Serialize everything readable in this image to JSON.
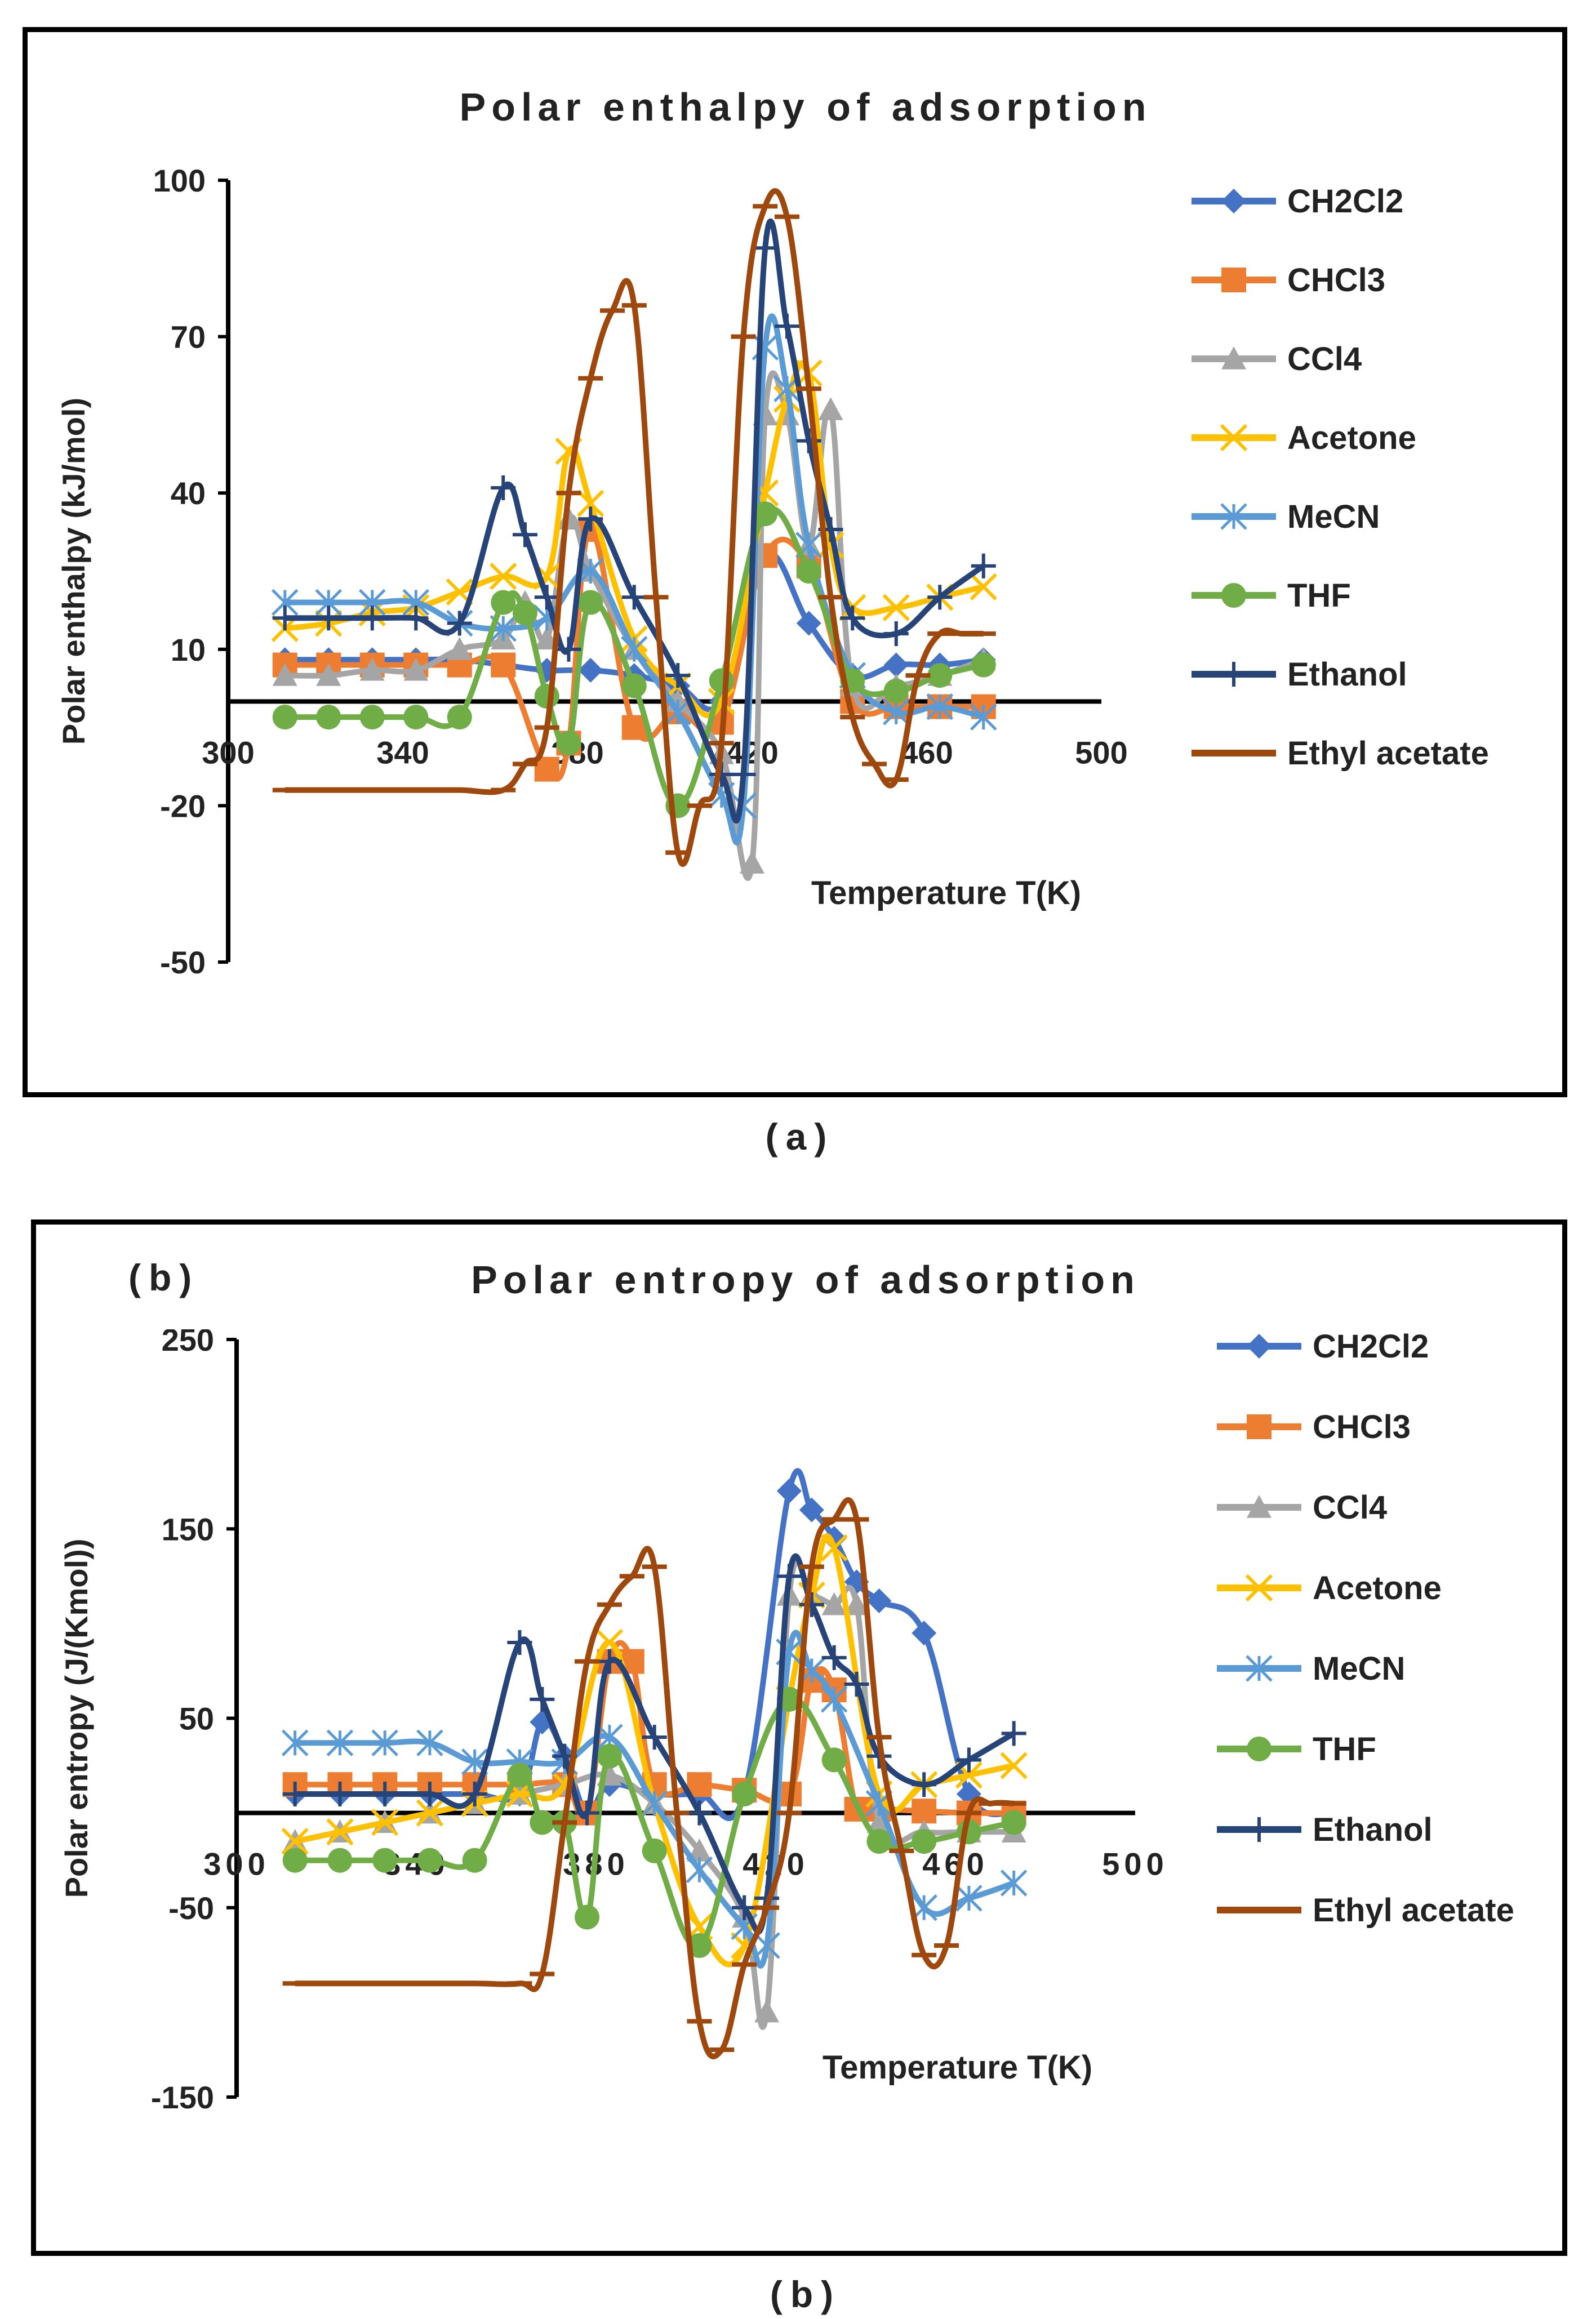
{
  "figure": {
    "caption_a": "(a)",
    "caption_b": "(b)",
    "panel_b_tag": "(b)"
  },
  "series_styles": [
    {
      "name": "CH2Cl2",
      "color": "#4472C4",
      "marker": "diamond"
    },
    {
      "name": "CHCl3",
      "color": "#ED7D31",
      "marker": "square"
    },
    {
      "name": "CCl4",
      "color": "#A5A5A5",
      "marker": "triangle"
    },
    {
      "name": "Acetone",
      "color": "#FFC000",
      "marker": "x"
    },
    {
      "name": "MeCN",
      "color": "#5B9BD5",
      "marker": "star"
    },
    {
      "name": "THF",
      "color": "#70AD47",
      "marker": "circle"
    },
    {
      "name": "Ethanol",
      "color": "#264478",
      "marker": "plus"
    },
    {
      "name": "Ethyl acetate",
      "color": "#9E480E",
      "marker": "dash"
    }
  ],
  "chart_data": [
    {
      "type": "line",
      "title": "Polar enthalpy of adsorption",
      "xlabel": "Temperature T(K)",
      "ylabel": "Polar enthalpy (kJ/mol)",
      "xlim": [
        300,
        500
      ],
      "ylim": [
        -50,
        100
      ],
      "x_ticks": [
        "300",
        "340",
        "380",
        "420",
        "460",
        "500"
      ],
      "y_ticks": [
        "100",
        "70",
        "40",
        "10",
        "-20",
        "-50"
      ],
      "legend_position": "right",
      "grid": false,
      "series": [
        {
          "name": "CH2Cl2",
          "x": [
            313,
            323,
            333,
            343,
            353,
            363,
            373,
            383,
            393,
            403,
            413,
            423,
            433,
            443,
            453,
            463,
            473
          ],
          "y": [
            8,
            8,
            8,
            8,
            8,
            7,
            6,
            6,
            5,
            3,
            0,
            28,
            15,
            5,
            7,
            7,
            8
          ]
        },
        {
          "name": "CHCl3",
          "x": [
            313,
            323,
            333,
            343,
            353,
            363,
            373,
            378,
            383,
            393,
            403,
            413,
            423,
            433,
            443,
            453,
            463,
            473
          ],
          "y": [
            7,
            7,
            7,
            7,
            7,
            7,
            -13,
            -8,
            33,
            -5,
            -2,
            -4,
            28,
            26,
            0,
            -1,
            -1,
            -1
          ]
        },
        {
          "name": "CCl4",
          "x": [
            313,
            323,
            333,
            343,
            353,
            363,
            368,
            373,
            378,
            383,
            393,
            403,
            413,
            420,
            423,
            428,
            433,
            438,
            443,
            453,
            463,
            473
          ],
          "y": [
            5,
            5,
            6,
            6,
            10,
            12,
            19,
            12,
            35,
            25,
            10,
            0,
            -10,
            -31,
            55,
            55,
            30,
            56,
            3,
            3,
            5,
            8
          ]
        },
        {
          "name": "Acetone",
          "x": [
            313,
            323,
            333,
            343,
            353,
            363,
            373,
            378,
            383,
            393,
            403,
            413,
            423,
            428,
            433,
            438,
            443,
            453,
            463,
            473
          ],
          "y": [
            14,
            15,
            17,
            18,
            21,
            24,
            24,
            48,
            38,
            12,
            3,
            0,
            40,
            58,
            63,
            30,
            18,
            18,
            20,
            22
          ]
        },
        {
          "name": "MeCN",
          "x": [
            313,
            323,
            333,
            343,
            353,
            363,
            373,
            383,
            393,
            403,
            413,
            418,
            423,
            428,
            433,
            443,
            453,
            463,
            473
          ],
          "y": [
            19,
            19,
            19,
            19,
            15,
            14,
            16,
            25,
            10,
            -2,
            -18,
            -20,
            68,
            60,
            30,
            5,
            -2,
            -1,
            -3
          ]
        },
        {
          "name": "THF",
          "x": [
            313,
            323,
            333,
            343,
            353,
            363,
            368,
            373,
            378,
            383,
            393,
            403,
            413,
            423,
            433,
            443,
            453,
            463,
            473
          ],
          "y": [
            -3,
            -3,
            -3,
            -3,
            -3,
            19,
            17,
            1,
            -8,
            19,
            3,
            -20,
            4,
            36,
            25,
            4,
            2,
            5,
            7
          ]
        },
        {
          "name": "Ethanol",
          "x": [
            313,
            323,
            333,
            343,
            353,
            363,
            368,
            373,
            378,
            383,
            393,
            403,
            413,
            418,
            423,
            428,
            433,
            438,
            443,
            453,
            463,
            473
          ],
          "y": [
            16,
            16,
            16,
            16,
            15,
            41,
            32,
            20,
            10,
            35,
            20,
            5,
            -14,
            -14,
            87,
            72,
            50,
            33,
            16,
            13,
            20,
            26
          ]
        },
        {
          "name": "Ethyl acetate",
          "x": [
            313,
            323,
            333,
            343,
            353,
            363,
            368,
            373,
            378,
            383,
            388,
            393,
            398,
            403,
            408,
            413,
            418,
            423,
            428,
            433,
            438,
            443,
            448,
            453,
            458,
            463,
            468,
            473
          ],
          "y": [
            -17,
            -17,
            -17,
            -17,
            -17,
            -17,
            -12,
            -5,
            40,
            62,
            75,
            76,
            20,
            -29,
            -20,
            -8,
            70,
            95,
            93,
            60,
            20,
            -3,
            -12,
            -15,
            5,
            13,
            13,
            13
          ]
        }
      ]
    },
    {
      "type": "line",
      "title": "Polar entropy of adsorption",
      "xlabel": "Temperature T(K)",
      "ylabel": "Polar entropy (J/(Kmol))",
      "xlim": [
        300,
        500
      ],
      "ylim": [
        -150,
        250
      ],
      "x_ticks": [
        "300",
        "340",
        "380",
        "420",
        "460",
        "500"
      ],
      "y_ticks": [
        "250",
        "150",
        "50",
        "-50",
        "-150"
      ],
      "legend_position": "right",
      "grid": false,
      "series": [
        {
          "name": "CH2Cl2",
          "x": [
            313,
            323,
            333,
            343,
            353,
            363,
            368,
            373,
            378,
            383,
            393,
            403,
            413,
            423,
            428,
            433,
            438,
            443,
            453,
            463,
            473
          ],
          "y": [
            10,
            10,
            10,
            10,
            10,
            10,
            48,
            30,
            0,
            15,
            10,
            10,
            10,
            170,
            160,
            145,
            122,
            112,
            95,
            10,
            0
          ]
        },
        {
          "name": "CHCl3",
          "x": [
            313,
            323,
            333,
            343,
            353,
            363,
            373,
            378,
            383,
            388,
            393,
            403,
            413,
            423,
            428,
            433,
            438,
            443,
            453,
            463,
            473
          ],
          "y": [
            15,
            15,
            15,
            15,
            15,
            15,
            15,
            0,
            80,
            80,
            15,
            15,
            12,
            10,
            70,
            65,
            2,
            2,
            1,
            0,
            0
          ]
        },
        {
          "name": "CCl4",
          "x": [
            313,
            323,
            333,
            343,
            353,
            363,
            373,
            383,
            393,
            403,
            413,
            418,
            423,
            428,
            433,
            438,
            443,
            453,
            463,
            473
          ],
          "y": [
            -15,
            -10,
            -5,
            0,
            5,
            10,
            15,
            20,
            5,
            -20,
            -55,
            -105,
            115,
            115,
            110,
            110,
            -5,
            -10,
            -10,
            -10
          ]
        },
        {
          "name": "Acetone",
          "x": [
            313,
            323,
            333,
            343,
            353,
            363,
            373,
            383,
            393,
            403,
            413,
            423,
            428,
            433,
            443,
            453,
            463,
            473
          ],
          "y": [
            -15,
            -10,
            -5,
            0,
            5,
            10,
            15,
            90,
            5,
            -60,
            -70,
            60,
            115,
            140,
            10,
            15,
            20,
            25
          ]
        },
        {
          "name": "MeCN",
          "x": [
            313,
            323,
            333,
            343,
            353,
            363,
            373,
            383,
            393,
            403,
            413,
            418,
            423,
            428,
            433,
            443,
            453,
            463,
            473
          ],
          "y": [
            37,
            37,
            37,
            37,
            27,
            27,
            27,
            40,
            5,
            -30,
            -60,
            -70,
            85,
            75,
            60,
            5,
            -50,
            -45,
            -37
          ]
        },
        {
          "name": "THF",
          "x": [
            313,
            323,
            333,
            343,
            353,
            363,
            368,
            373,
            378,
            383,
            393,
            403,
            413,
            423,
            433,
            443,
            453,
            463,
            473
          ],
          "y": [
            -25,
            -25,
            -25,
            -25,
            -25,
            20,
            -5,
            -5,
            -55,
            30,
            -20,
            -70,
            10,
            60,
            28,
            -15,
            -15,
            -10,
            -5
          ]
        },
        {
          "name": "Ethanol",
          "x": [
            313,
            323,
            333,
            343,
            353,
            363,
            368,
            373,
            378,
            383,
            393,
            403,
            413,
            418,
            423,
            428,
            433,
            438,
            443,
            453,
            463,
            473
          ],
          "y": [
            10,
            10,
            10,
            10,
            10,
            90,
            60,
            30,
            0,
            80,
            40,
            0,
            -50,
            -45,
            125,
            110,
            82,
            68,
            30,
            15,
            28,
            42
          ]
        },
        {
          "name": "Ethyl acetate",
          "x": [
            313,
            323,
            333,
            343,
            353,
            363,
            368,
            373,
            378,
            383,
            388,
            393,
            398,
            403,
            408,
            413,
            418,
            423,
            428,
            433,
            438,
            443,
            448,
            453,
            458,
            463,
            468,
            473
          ],
          "y": [
            -90,
            -90,
            -90,
            -90,
            -90,
            -90,
            -85,
            -5,
            80,
            110,
            125,
            130,
            0,
            -110,
            -125,
            -80,
            -50,
            0,
            130,
            155,
            155,
            40,
            -20,
            -75,
            -70,
            0,
            5,
            5
          ]
        }
      ]
    }
  ]
}
